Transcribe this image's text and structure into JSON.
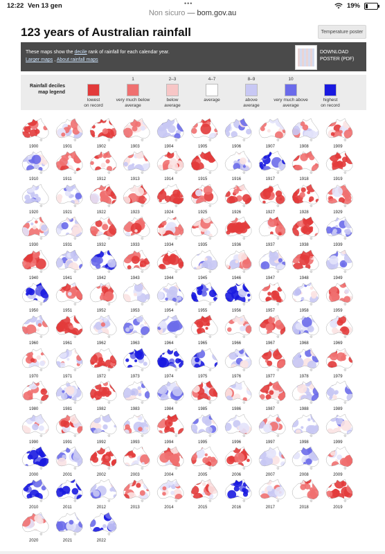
{
  "status": {
    "time": "12:22",
    "date": "Ven 13 gen",
    "battery": "19%",
    "battery_level": 0.19,
    "dots": "•••"
  },
  "url": {
    "security": "Non sicuro",
    "sep": " — ",
    "domain": "bom.gov.au"
  },
  "page": {
    "title": "123 years of Australian rainfall",
    "temp_button": "Temperature poster"
  },
  "banner": {
    "text_pre": "These maps show the ",
    "text_link": "decile",
    "text_post": " rank of rainfall for each calendar year.",
    "link1": "Larger maps",
    "link_sep": " , ",
    "link2": "About rainfall maps",
    "download_line1": "DOWNLOAD",
    "download_line2": "POSTER (PDF)"
  },
  "legend": {
    "title_line1": "Rainfall deciles",
    "title_line2": "map legend",
    "items": [
      {
        "num": "",
        "line1": "lowest",
        "line2": "on record",
        "color": "#e23b3b"
      },
      {
        "num": "1",
        "line1": "very much below",
        "line2": "average",
        "color": "#ef7070"
      },
      {
        "num": "2–3",
        "line1": "below",
        "line2": "average",
        "color": "#f7c6c6"
      },
      {
        "num": "4–7",
        "line1": "average",
        "line2": "",
        "color": "#ffffff"
      },
      {
        "num": "8–9",
        "line1": "above",
        "line2": "average",
        "color": "#c8c8f4"
      },
      {
        "num": "10",
        "line1": "very much above",
        "line2": "average",
        "color": "#6b6bea"
      },
      {
        "num": "",
        "line1": "highest",
        "line2": "on record",
        "color": "#1a1ae0"
      }
    ]
  },
  "years": [
    {
      "year": "1900",
      "tone": -1
    },
    {
      "year": "1901",
      "tone": 0
    },
    {
      "year": "1902",
      "tone": -2
    },
    {
      "year": "1903",
      "tone": 0
    },
    {
      "year": "1904",
      "tone": 1
    },
    {
      "year": "1905",
      "tone": -1
    },
    {
      "year": "1906",
      "tone": 1
    },
    {
      "year": "1907",
      "tone": 0
    },
    {
      "year": "1908",
      "tone": 0
    },
    {
      "year": "1909",
      "tone": -1
    },
    {
      "year": "1910",
      "tone": 1
    },
    {
      "year": "1911",
      "tone": -1
    },
    {
      "year": "1912",
      "tone": -1
    },
    {
      "year": "1913",
      "tone": 0
    },
    {
      "year": "1914",
      "tone": -1
    },
    {
      "year": "1915",
      "tone": -2
    },
    {
      "year": "1916",
      "tone": 1
    },
    {
      "year": "1917",
      "tone": 2
    },
    {
      "year": "1918",
      "tone": -1
    },
    {
      "year": "1919",
      "tone": -2
    },
    {
      "year": "1920",
      "tone": 1
    },
    {
      "year": "1921",
      "tone": 1
    },
    {
      "year": "1922",
      "tone": -1
    },
    {
      "year": "1923",
      "tone": -1
    },
    {
      "year": "1924",
      "tone": -2
    },
    {
      "year": "1925",
      "tone": -1
    },
    {
      "year": "1926",
      "tone": -1
    },
    {
      "year": "1927",
      "tone": -2
    },
    {
      "year": "1928",
      "tone": -2
    },
    {
      "year": "1929",
      "tone": -1
    },
    {
      "year": "1930",
      "tone": 0
    },
    {
      "year": "1931",
      "tone": 1
    },
    {
      "year": "1932",
      "tone": -1
    },
    {
      "year": "1933",
      "tone": -1
    },
    {
      "year": "1934",
      "tone": -1
    },
    {
      "year": "1935",
      "tone": -1
    },
    {
      "year": "1936",
      "tone": -2
    },
    {
      "year": "1937",
      "tone": -1
    },
    {
      "year": "1938",
      "tone": -2
    },
    {
      "year": "1939",
      "tone": 1
    },
    {
      "year": "1940",
      "tone": -2
    },
    {
      "year": "1941",
      "tone": 1
    },
    {
      "year": "1942",
      "tone": 2
    },
    {
      "year": "1943",
      "tone": -1
    },
    {
      "year": "1944",
      "tone": -2
    },
    {
      "year": "1945",
      "tone": 1
    },
    {
      "year": "1946",
      "tone": 0
    },
    {
      "year": "1947",
      "tone": 1
    },
    {
      "year": "1948",
      "tone": -1
    },
    {
      "year": "1949",
      "tone": 1
    },
    {
      "year": "1950",
      "tone": 2
    },
    {
      "year": "1951",
      "tone": -1
    },
    {
      "year": "1952",
      "tone": -1
    },
    {
      "year": "1953",
      "tone": 0
    },
    {
      "year": "1954",
      "tone": 1
    },
    {
      "year": "1955",
      "tone": 2
    },
    {
      "year": "1956",
      "tone": 2
    },
    {
      "year": "1957",
      "tone": -2
    },
    {
      "year": "1958",
      "tone": 1
    },
    {
      "year": "1959",
      "tone": -1
    },
    {
      "year": "1960",
      "tone": 0
    },
    {
      "year": "1961",
      "tone": -2
    },
    {
      "year": "1962",
      "tone": 0
    },
    {
      "year": "1963",
      "tone": 1
    },
    {
      "year": "1964",
      "tone": 1
    },
    {
      "year": "1965",
      "tone": -2
    },
    {
      "year": "1966",
      "tone": 0
    },
    {
      "year": "1967",
      "tone": -1
    },
    {
      "year": "1968",
      "tone": 1
    },
    {
      "year": "1969",
      "tone": -1
    },
    {
      "year": "1970",
      "tone": -1
    },
    {
      "year": "1971",
      "tone": 0
    },
    {
      "year": "1972",
      "tone": -2
    },
    {
      "year": "1973",
      "tone": 2
    },
    {
      "year": "1974",
      "tone": 2
    },
    {
      "year": "1975",
      "tone": 2
    },
    {
      "year": "1976",
      "tone": 1
    },
    {
      "year": "1977",
      "tone": -1
    },
    {
      "year": "1978",
      "tone": 1
    },
    {
      "year": "1979",
      "tone": -1
    },
    {
      "year": "1980",
      "tone": -1
    },
    {
      "year": "1981",
      "tone": 1
    },
    {
      "year": "1982",
      "tone": -2
    },
    {
      "year": "1983",
      "tone": 1
    },
    {
      "year": "1984",
      "tone": 1
    },
    {
      "year": "1985",
      "tone": -1
    },
    {
      "year": "1986",
      "tone": 0
    },
    {
      "year": "1987",
      "tone": -1
    },
    {
      "year": "1988",
      "tone": 1
    },
    {
      "year": "1989",
      "tone": 1
    },
    {
      "year": "1990",
      "tone": 0
    },
    {
      "year": "1991",
      "tone": -1
    },
    {
      "year": "1992",
      "tone": 1
    },
    {
      "year": "1993",
      "tone": 0
    },
    {
      "year": "1994",
      "tone": -2
    },
    {
      "year": "1995",
      "tone": 1
    },
    {
      "year": "1996",
      "tone": 0
    },
    {
      "year": "1997",
      "tone": 0
    },
    {
      "year": "1998",
      "tone": 1
    },
    {
      "year": "1999",
      "tone": 1
    },
    {
      "year": "2000",
      "tone": 2
    },
    {
      "year": "2001",
      "tone": 1
    },
    {
      "year": "2002",
      "tone": -2
    },
    {
      "year": "2003",
      "tone": -1
    },
    {
      "year": "2004",
      "tone": -1
    },
    {
      "year": "2005",
      "tone": -1
    },
    {
      "year": "2006",
      "tone": -2
    },
    {
      "year": "2007",
      "tone": 0
    },
    {
      "year": "2008",
      "tone": 1
    },
    {
      "year": "2009",
      "tone": -1
    },
    {
      "year": "2010",
      "tone": 2
    },
    {
      "year": "2011",
      "tone": 2
    },
    {
      "year": "2012",
      "tone": 1
    },
    {
      "year": "2013",
      "tone": -1
    },
    {
      "year": "2014",
      "tone": 0
    },
    {
      "year": "2015",
      "tone": -1
    },
    {
      "year": "2016",
      "tone": 2
    },
    {
      "year": "2017",
      "tone": 0
    },
    {
      "year": "2018",
      "tone": -1
    },
    {
      "year": "2019",
      "tone": -2
    },
    {
      "year": "2020",
      "tone": 0
    },
    {
      "year": "2021",
      "tone": 1
    },
    {
      "year": "2022",
      "tone": 2
    }
  ]
}
